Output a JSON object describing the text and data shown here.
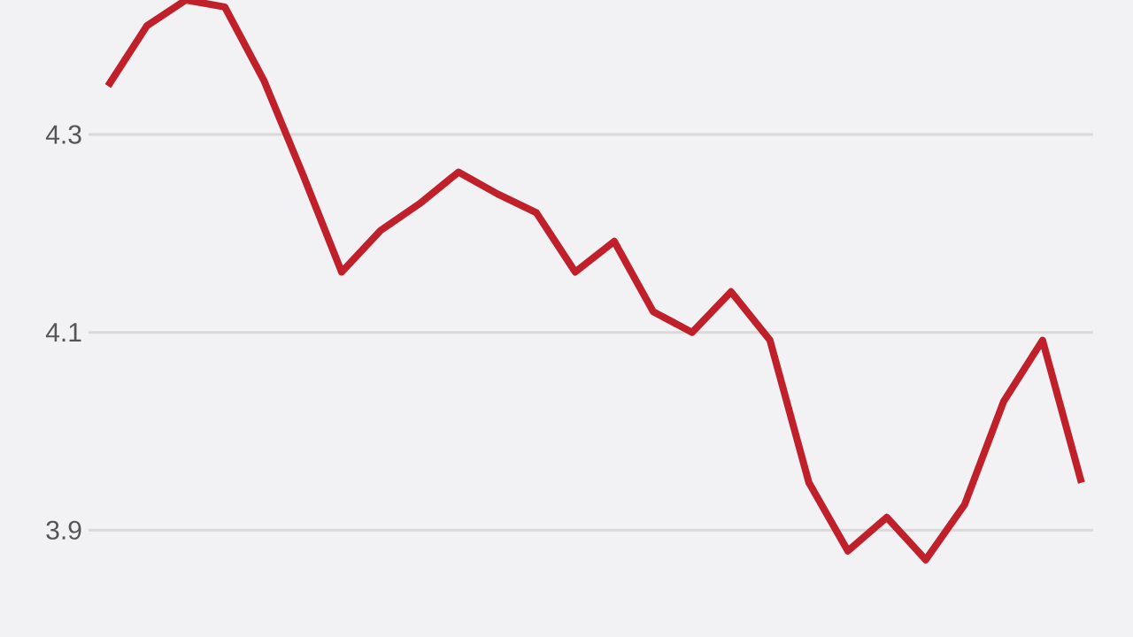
{
  "chart_data": {
    "type": "line",
    "categories": [
      null,
      null,
      null,
      null,
      null,
      null,
      null,
      null,
      null,
      null,
      null,
      null,
      null,
      null,
      null,
      null,
      null,
      null,
      null,
      null,
      null,
      null,
      null,
      null,
      null,
      null
    ],
    "series": [
      {
        "color": "#c0202a",
        "values": [
          4.349,
          4.41,
          4.436,
          4.429,
          4.355,
          4.26,
          4.161,
          4.203,
          4.23,
          4.262,
          4.24,
          4.221,
          4.161,
          4.192,
          4.121,
          4.1,
          4.141,
          4.092,
          3.948,
          3.879,
          3.913,
          3.87,
          3.926,
          4.03,
          4.092,
          3.948
        ]
      }
    ],
    "ylim": [
      3.792,
      4.436
    ],
    "yticks": [
      {
        "value": 3.9,
        "label": "3.9"
      },
      {
        "value": 4.1,
        "label": "4.1"
      },
      {
        "value": 4.3,
        "label": "4.3"
      }
    ],
    "grid": "y",
    "tick_labels": "y",
    "marker": "none",
    "line_style": "solid"
  }
}
